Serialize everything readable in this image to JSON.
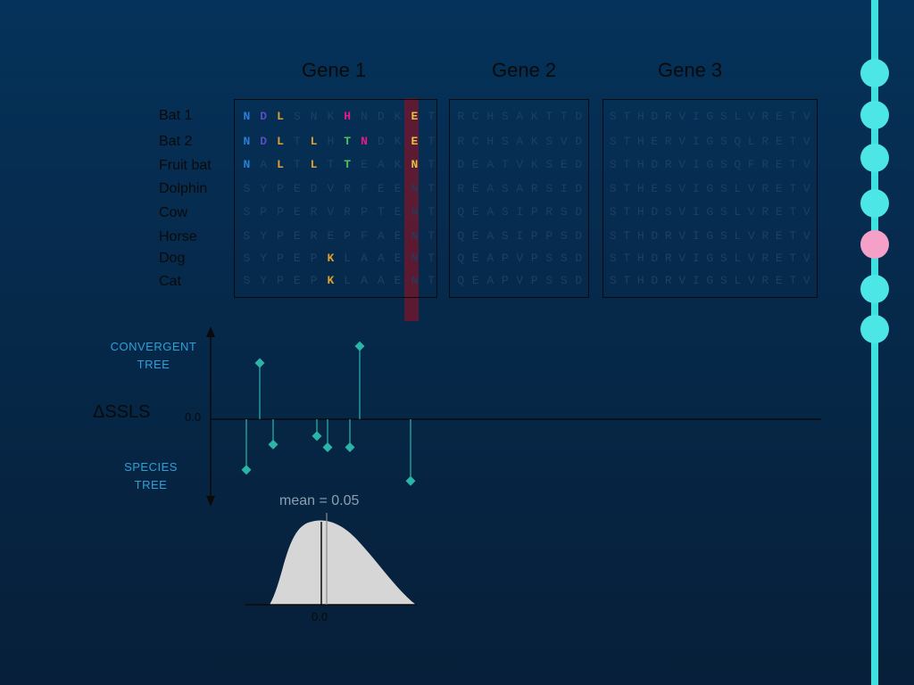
{
  "genes": [
    "Gene 1",
    "Gene 2",
    "Gene 3"
  ],
  "species": [
    "Bat 1",
    "Bat 2",
    "Fruit bat",
    "Dolphin",
    "Cow",
    "Horse",
    "Dog",
    "Cat"
  ],
  "gene1_rows": [
    "NDLSNKHNDKET",
    "NDLTLHTNDKET",
    "NALTLTTEAKNT",
    "SYPEDVRFEENT",
    "SPPERVRPTENT",
    "SYPEREPFAENT",
    "SYPEPKLAAENT",
    "SYPEPKLAAENT"
  ],
  "gene1_colors": [
    [
      "#2a7fd4",
      "#5a4bc0",
      "#e0a030",
      null,
      null,
      null,
      "#e8198a",
      null,
      null,
      null,
      "#e0c040",
      null
    ],
    [
      "#2a7fd4",
      "#5a4bc0",
      "#e0a030",
      null,
      "#e0a030",
      null,
      "#4fc060",
      "#e8198a",
      null,
      null,
      "#e0c040",
      null
    ],
    [
      "#2a7fd4",
      null,
      "#e0a030",
      null,
      "#e0a030",
      null,
      "#4fc060",
      null,
      null,
      null,
      "#e0c040",
      null
    ],
    [
      null,
      null,
      null,
      null,
      null,
      null,
      null,
      null,
      null,
      null,
      null,
      null
    ],
    [
      null,
      null,
      null,
      null,
      null,
      null,
      null,
      null,
      null,
      null,
      null,
      null
    ],
    [
      null,
      null,
      null,
      null,
      null,
      null,
      null,
      null,
      null,
      null,
      null,
      null
    ],
    [
      null,
      null,
      null,
      null,
      null,
      "#e0a030",
      null,
      null,
      null,
      null,
      null,
      null
    ],
    [
      null,
      null,
      null,
      null,
      null,
      "#e0a030",
      null,
      null,
      null,
      null,
      null,
      null
    ]
  ],
  "gene2_rows": [
    "RCHSAKTTD",
    "RCHSAKSVD",
    "DEATVKSED",
    "REASARSID",
    "QEASIPRSD",
    "QEASIPPSD",
    "QEAPVPSSD",
    "QEAPVPSSD"
  ],
  "gene3_rows": [
    "STHDRVIGSLVRETV",
    "STHERVIGSQLRETV",
    "STHDRVIGSQFRETV",
    "STHESVIGSLVRETV",
    "STHDSVIGSLVRETV",
    "STHDRVIGSLVRETV",
    "STHDRVIGSLVRETV",
    "STHDRVIGSLVRETV"
  ],
  "plot": {
    "ylabel": "ΔSSLS",
    "top_label": "CONVERGENT TREE",
    "bottom_label": "SPECIES TREE",
    "zero_label": "0.0",
    "mean_label": "mean = 0.05",
    "hist_zero_label": "0.0"
  },
  "chart_data": {
    "type": "scatter",
    "x": [
      1,
      2,
      3,
      4,
      5,
      6,
      7,
      8
    ],
    "y": [
      -0.9,
      1.0,
      -0.45,
      -0.3,
      -0.5,
      -0.5,
      1.3,
      -1.1
    ],
    "ylabel": "ΔSSLS"
  },
  "timeline": {
    "dots": [
      "#4de6e6",
      "#4de6e6",
      "#4de6e6",
      "#4de6e6",
      "#f4a0c8",
      "#4de6e6",
      "#4de6e6"
    ]
  }
}
